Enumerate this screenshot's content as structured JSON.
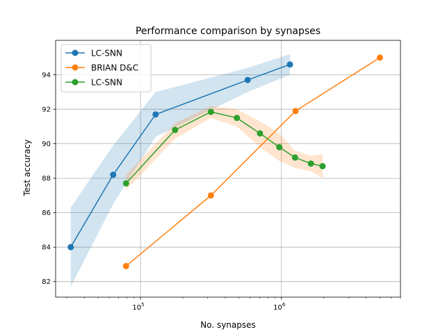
{
  "chart_data": {
    "type": "line",
    "title": "Performance comparison by synapses",
    "xlabel": "No. synapses",
    "ylabel": "Test accuracy",
    "xscale": "log",
    "xlim": [
      25000,
      7000000
    ],
    "ylim": [
      81.1,
      96.0
    ],
    "grid": true,
    "legend_position": "top-left",
    "x_ticks": [
      {
        "value": 100000,
        "base": "10",
        "exp": "5"
      },
      {
        "value": 1000000,
        "base": "10",
        "exp": "6"
      }
    ],
    "y_ticks": [
      82,
      84,
      86,
      88,
      90,
      92,
      94
    ],
    "series": [
      {
        "name": "LC-SNN",
        "color": "#1f77b4",
        "band_color": "#1f77b4",
        "x": [
          32000,
          64000,
          128000,
          576000,
          1150000
        ],
        "y": [
          84.0,
          88.2,
          91.7,
          93.7,
          94.6
        ],
        "lower": [
          81.7,
          86.5,
          90.4,
          93.0,
          94.0
        ],
        "upper": [
          86.3,
          89.9,
          93.0,
          94.4,
          95.2
        ]
      },
      {
        "name": "BRIAN D&C",
        "color": "#ff7f0e",
        "x": [
          79000,
          316000,
          1260000,
          5000000
        ],
        "y": [
          82.9,
          87.0,
          91.9,
          95.0
        ]
      },
      {
        "name": "LC-SNN",
        "color": "#2ca02c",
        "band_color": "#ff7f0e",
        "x": [
          79000,
          176000,
          316000,
          483000,
          705000,
          967000,
          1250000,
          1620000,
          1960000
        ],
        "y": [
          87.7,
          90.8,
          91.85,
          91.5,
          90.6,
          89.8,
          89.2,
          88.85,
          88.7
        ],
        "lower": [
          87.3,
          90.3,
          91.5,
          91.0,
          89.8,
          89.0,
          88.6,
          88.4,
          88.0
        ],
        "upper": [
          88.2,
          91.2,
          92.2,
          92.0,
          91.3,
          90.6,
          89.6,
          89.3,
          89.4
        ]
      }
    ]
  }
}
